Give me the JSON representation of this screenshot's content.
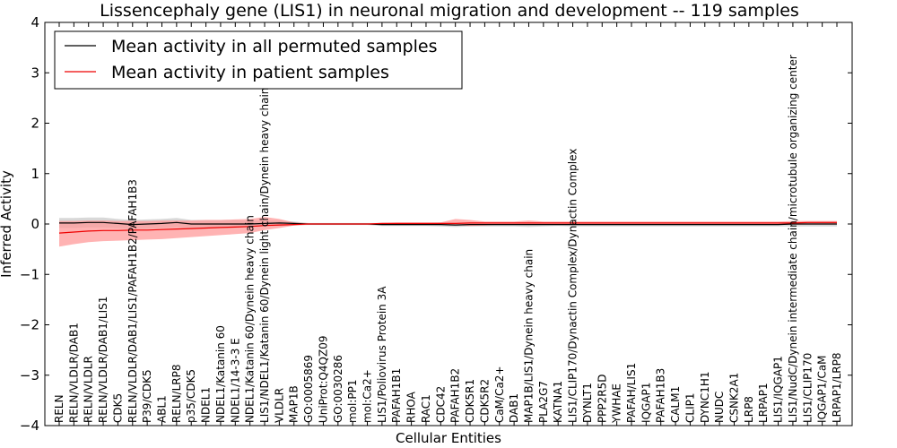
{
  "chart_data": {
    "type": "line",
    "title": "Lissencephaly gene (LIS1) in neuronal migration and development -- 119 samples",
    "xlabel": "Cellular Entities",
    "ylabel": "Inferred Activity",
    "ylim": [
      -4,
      4
    ],
    "yticks": [
      "−4",
      "−3",
      "−2",
      "−1",
      "0",
      "1",
      "2",
      "3",
      "4"
    ],
    "legend_position": "upper-left",
    "grid": false,
    "categories": [
      "RELN",
      "RELN/VLDLR/DAB1",
      "RELN/VLDLR",
      "RELN/VLDLR/DAB1/LIS1",
      "CDK5",
      "RELN/VLDLR/DAB1/LIS1/PAFAH1B2/PAFAH1B3",
      "P39/CDK5",
      "ABL1",
      "RELN/LRP8",
      "p35/CDK5",
      "NDEL1",
      "NDEL1/Katanin 60",
      "NDEL1/14-3-3 E",
      "NDEL1/Katanin 60/Dynein heavy chain",
      "LIS1/NDEL1/Katanin 60/Dynein light chain/Dynein heavy chain",
      "VLDLR",
      "MAP1B",
      "GO:0005869",
      "UniProt:Q4QZ09",
      "GO:0030286",
      "mol:PP1",
      "mol:Ca2+",
      "LIS1/Poliovirus Protein 3A",
      "PAFAH1B1",
      "RHOA",
      "RAC1",
      "CDC42",
      "PAFAH1B2",
      "CDK5R1",
      "CDK5R2",
      "CaM/Ca2+",
      "DAB1",
      "MAP1B/LIS1/Dynein heavy chain",
      "PLA2G7",
      "KATNA1",
      "LIS1/CLIP170/Dynactin Complex/Dynactin Complex",
      "DYNLT1",
      "PPP2R5D",
      "YWHAE",
      "PAFAH/LIS1",
      "IQGAP1",
      "PAFAH1B3",
      "CALM1",
      "CLIP1",
      "DYNC1H1",
      "NUDC",
      "CSNK2A1",
      "LRP8",
      "LRPAP1",
      "LIS1/IQGAP1",
      "LIS1/NudC/Dynein intermediate chain/microtubule organizing center",
      "LIS1/CLIP170",
      "IQGAP1/CaM",
      "LRPAP1/LRP8"
    ],
    "series": [
      {
        "name": "Mean activity in all permuted samples",
        "color": "#000000",
        "band_color": "#c8c8c8",
        "values": [
          0.02,
          0.02,
          0.03,
          0.03,
          0.01,
          -0.01,
          0.0,
          0.01,
          0.03,
          0.0,
          0.0,
          0.0,
          0.0,
          0.0,
          0.01,
          0.02,
          0.01,
          0.0,
          0.0,
          0.0,
          0.0,
          0.0,
          -0.01,
          -0.01,
          -0.01,
          -0.01,
          -0.01,
          -0.02,
          -0.01,
          -0.01,
          -0.01,
          -0.01,
          -0.01,
          -0.01,
          -0.01,
          -0.01,
          -0.01,
          -0.01,
          -0.01,
          -0.01,
          -0.01,
          -0.01,
          -0.01,
          -0.01,
          -0.01,
          -0.01,
          -0.01,
          -0.01,
          -0.01,
          -0.01,
          0.0,
          0.0,
          0.0,
          0.0
        ],
        "lower": [
          -0.08,
          -0.08,
          -0.07,
          -0.07,
          -0.08,
          -0.1,
          -0.09,
          -0.08,
          -0.06,
          -0.08,
          -0.08,
          -0.08,
          -0.08,
          -0.06,
          -0.05,
          -0.04,
          -0.03,
          -0.02,
          -0.02,
          -0.02,
          -0.02,
          -0.02,
          -0.04,
          -0.04,
          -0.04,
          -0.04,
          -0.05,
          -0.06,
          -0.05,
          -0.05,
          -0.05,
          -0.05,
          -0.06,
          -0.05,
          -0.04,
          -0.05,
          -0.05,
          -0.05,
          -0.05,
          -0.05,
          -0.05,
          -0.05,
          -0.05,
          -0.05,
          -0.05,
          -0.05,
          -0.05,
          -0.05,
          -0.05,
          -0.05,
          -0.05,
          -0.05,
          -0.05,
          -0.05
        ],
        "upper": [
          0.12,
          0.12,
          0.13,
          0.13,
          0.1,
          0.08,
          0.09,
          0.1,
          0.12,
          0.08,
          0.08,
          0.08,
          0.08,
          0.07,
          0.07,
          0.07,
          0.05,
          0.02,
          0.02,
          0.02,
          0.02,
          0.02,
          0.02,
          0.02,
          0.02,
          0.02,
          0.03,
          0.02,
          0.03,
          0.03,
          0.03,
          0.03,
          0.04,
          0.03,
          0.03,
          0.03,
          0.03,
          0.03,
          0.03,
          0.03,
          0.03,
          0.03,
          0.03,
          0.03,
          0.03,
          0.03,
          0.03,
          0.03,
          0.03,
          0.03,
          0.04,
          0.04,
          0.05,
          0.05
        ]
      },
      {
        "name": "Mean activity in patient samples",
        "color": "#ee0000",
        "band_color": "#ff9a9a",
        "values": [
          -0.18,
          -0.16,
          -0.14,
          -0.13,
          -0.13,
          -0.12,
          -0.12,
          -0.11,
          -0.1,
          -0.09,
          -0.08,
          -0.07,
          -0.06,
          -0.05,
          -0.03,
          -0.02,
          -0.01,
          0.0,
          0.0,
          0.0,
          0.0,
          0.0,
          0.01,
          0.01,
          0.01,
          0.01,
          0.01,
          0.01,
          0.02,
          0.02,
          0.02,
          0.02,
          0.02,
          0.02,
          0.02,
          0.02,
          0.02,
          0.02,
          0.02,
          0.02,
          0.02,
          0.02,
          0.02,
          0.02,
          0.02,
          0.02,
          0.02,
          0.02,
          0.02,
          0.02,
          0.02,
          0.03,
          0.03,
          0.03
        ],
        "lower": [
          -0.45,
          -0.4,
          -0.36,
          -0.34,
          -0.33,
          -0.32,
          -0.31,
          -0.3,
          -0.28,
          -0.26,
          -0.24,
          -0.22,
          -0.2,
          -0.18,
          -0.12,
          -0.08,
          -0.03,
          -0.01,
          -0.01,
          -0.01,
          -0.01,
          -0.01,
          -0.01,
          -0.01,
          -0.01,
          -0.01,
          -0.01,
          -0.02,
          -0.04,
          -0.03,
          -0.01,
          -0.01,
          -0.01,
          -0.01,
          -0.01,
          -0.01,
          -0.01,
          -0.01,
          -0.01,
          -0.01,
          -0.01,
          -0.01,
          -0.01,
          -0.01,
          -0.01,
          -0.01,
          -0.01,
          -0.01,
          -0.01,
          -0.01,
          -0.01,
          -0.01,
          -0.01,
          -0.01
        ],
        "upper": [
          0.06,
          0.06,
          0.07,
          0.07,
          0.06,
          0.06,
          0.06,
          0.07,
          0.07,
          0.07,
          0.08,
          0.08,
          0.09,
          0.1,
          0.14,
          0.1,
          0.03,
          0.01,
          0.01,
          0.01,
          0.01,
          0.01,
          0.02,
          0.03,
          0.03,
          0.03,
          0.03,
          0.1,
          0.08,
          0.05,
          0.05,
          0.05,
          0.07,
          0.05,
          0.05,
          0.05,
          0.05,
          0.05,
          0.05,
          0.05,
          0.05,
          0.05,
          0.05,
          0.05,
          0.05,
          0.05,
          0.05,
          0.05,
          0.05,
          0.05,
          0.06,
          0.06,
          0.06,
          0.06
        ]
      }
    ]
  }
}
